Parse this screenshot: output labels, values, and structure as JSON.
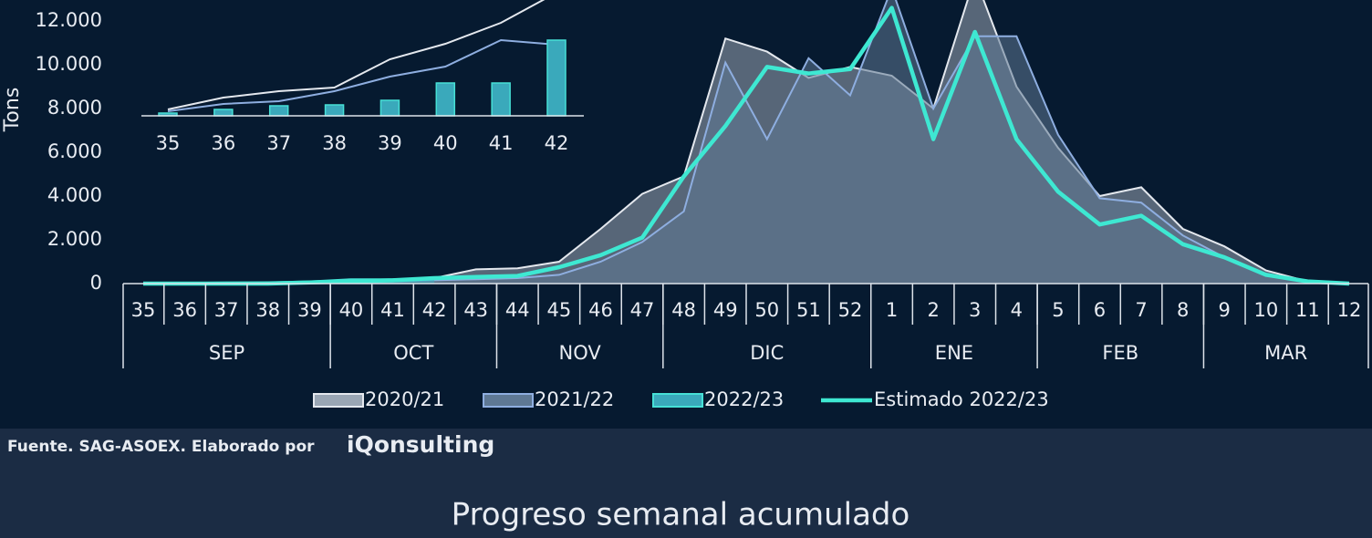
{
  "chart_data": [
    {
      "type": "area",
      "title": "Progreso semanal acumulado",
      "y_label": "Tons",
      "categories": [
        "35",
        "36",
        "37",
        "38",
        "39",
        "40",
        "41",
        "42",
        "43",
        "44",
        "45",
        "46",
        "47",
        "48",
        "49",
        "50",
        "51",
        "52",
        "1",
        "2",
        "3",
        "4",
        "5",
        "6",
        "7",
        "8",
        "9",
        "10",
        "11",
        "12"
      ],
      "groups": [
        {
          "label": "SEP",
          "start": "35",
          "end": "39"
        },
        {
          "label": "OCT",
          "start": "40",
          "end": "43"
        },
        {
          "label": "NOV",
          "start": "44",
          "end": "47"
        },
        {
          "label": "DIC",
          "start": "48",
          "end": "52"
        },
        {
          "label": "ENE",
          "start": "1",
          "end": "4"
        },
        {
          "label": "FEB",
          "start": "5",
          "end": "8"
        },
        {
          "label": "MAR",
          "start": "9",
          "end": "12"
        }
      ],
      "ylim": [
        0,
        13000
      ],
      "yticks": [
        0,
        {
          "value": 2000,
          "label": "2.000"
        },
        {
          "value": 4000,
          "label": "4.000"
        },
        {
          "value": 6000,
          "label": "6.000"
        },
        {
          "value": 8000,
          "label": "8.000"
        },
        {
          "value": 10000,
          "label": "10.000"
        },
        {
          "value": 12000,
          "label": "12.000"
        }
      ],
      "series": [
        {
          "name": "2020/21",
          "type": "area",
          "color": "#e4e8ee",
          "fill": "#9aa6b4",
          "values": [
            0,
            0,
            0,
            0,
            50,
            100,
            150,
            250,
            650,
            700,
            1000,
            2500,
            4100,
            4900,
            11200,
            10600,
            9400,
            9900,
            9500,
            8000,
            14000,
            9000,
            6200,
            4000,
            4400,
            2500,
            1700,
            600,
            100,
            0
          ]
        },
        {
          "name": "2021/22",
          "type": "area",
          "color": "#8eaee0",
          "fill": "#5e7894",
          "values": [
            0,
            0,
            0,
            0,
            50,
            100,
            100,
            150,
            200,
            250,
            400,
            1000,
            1900,
            3300,
            10100,
            6600,
            10300,
            8600,
            13500,
            8000,
            11300,
            11300,
            6800,
            3900,
            3700,
            2200,
            1200,
            400,
            50,
            0
          ]
        },
        {
          "name": "2022/23",
          "type": "area",
          "color": "#46e0d6",
          "fill": "#3aa9bb",
          "values": [
            20,
            30,
            50,
            60,
            100,
            200,
            200,
            250,
            null,
            null,
            null,
            null,
            null,
            null,
            null,
            null,
            null,
            null,
            null,
            null,
            null,
            null,
            null,
            null,
            null,
            null,
            null,
            null,
            null,
            null
          ]
        },
        {
          "name": "Estimado 2022/23",
          "type": "line",
          "color": "#3ee8d2",
          "values": [
            0,
            0,
            0,
            0,
            50,
            100,
            150,
            250,
            300,
            350,
            750,
            1300,
            2100,
            4900,
            7200,
            9900,
            9600,
            9800,
            12600,
            6600,
            11500,
            6600,
            4200,
            2700,
            3100,
            1800,
            1200,
            400,
            100,
            0
          ]
        }
      ]
    },
    {
      "type": "combo",
      "categories": [
        "35",
        "36",
        "37",
        "38",
        "39",
        "40",
        "41",
        "42"
      ],
      "ylim": [
        0,
        127
      ],
      "series": [
        {
          "type": "line",
          "color": "#e4e8ee",
          "values": [
            7,
            20,
            27,
            31,
            62,
            79,
            102,
            135
          ]
        },
        {
          "type": "line",
          "color": "#8eaee0",
          "values": [
            5,
            13,
            16,
            27,
            43,
            54,
            83,
            78
          ]
        },
        {
          "type": "bar",
          "color": "#3aa9bb",
          "values": [
            3,
            7,
            11,
            12,
            17,
            36,
            36,
            83
          ]
        }
      ]
    }
  ],
  "footer": {
    "source": "Fuente. SAG-ASOEX. Elaborado por",
    "logo": "iQonsulting"
  }
}
